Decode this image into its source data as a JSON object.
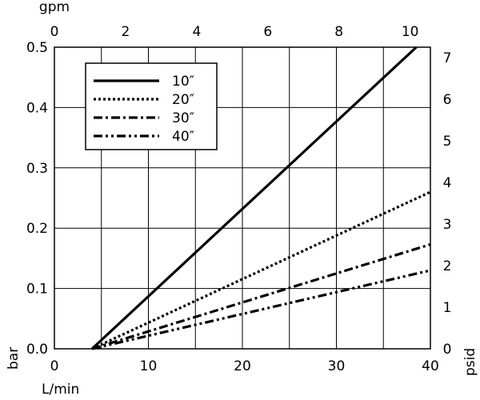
{
  "chart_data": {
    "type": "line",
    "title": "",
    "x_bottom": {
      "label": "L/min",
      "min": 0,
      "max": 40,
      "ticks": [
        "0",
        "10",
        "20",
        "30",
        "40"
      ],
      "tick_values": [
        0,
        10,
        20,
        30,
        40
      ]
    },
    "x_top": {
      "label": "gpm",
      "ticks": [
        "0",
        "2",
        "4",
        "6",
        "8",
        "10"
      ],
      "tick_values": [
        0,
        2,
        4,
        6,
        8,
        10
      ],
      "gpm_max": 10.57
    },
    "y_left": {
      "label": "bar",
      "min": 0,
      "max": 0.5,
      "ticks": [
        "0.0",
        "0.1",
        "0.2",
        "0.3",
        "0.4",
        "0.5"
      ],
      "tick_values": [
        0,
        0.1,
        0.2,
        0.3,
        0.4,
        0.5
      ]
    },
    "y_right": {
      "label": "psid",
      "ticks": [
        "0",
        "1",
        "2",
        "3",
        "4",
        "5",
        "6",
        "7"
      ],
      "tick_values": [
        0,
        1,
        2,
        3,
        4,
        5,
        6,
        7
      ],
      "psid_max": 7.25
    },
    "grid": true,
    "legend_position": "top-left",
    "series": [
      {
        "name": "10″",
        "style": "solid",
        "x": [
          4,
          38.5
        ],
        "y": [
          0,
          0.5
        ]
      },
      {
        "name": "20″",
        "style": "dotted",
        "x": [
          4,
          40
        ],
        "y": [
          0,
          0.26
        ]
      },
      {
        "name": "30″",
        "style": "dashdot",
        "x": [
          4,
          40
        ],
        "y": [
          0,
          0.173
        ]
      },
      {
        "name": "40″",
        "style": "dashdotdot",
        "x": [
          4,
          40
        ],
        "y": [
          0,
          0.13
        ]
      }
    ]
  }
}
